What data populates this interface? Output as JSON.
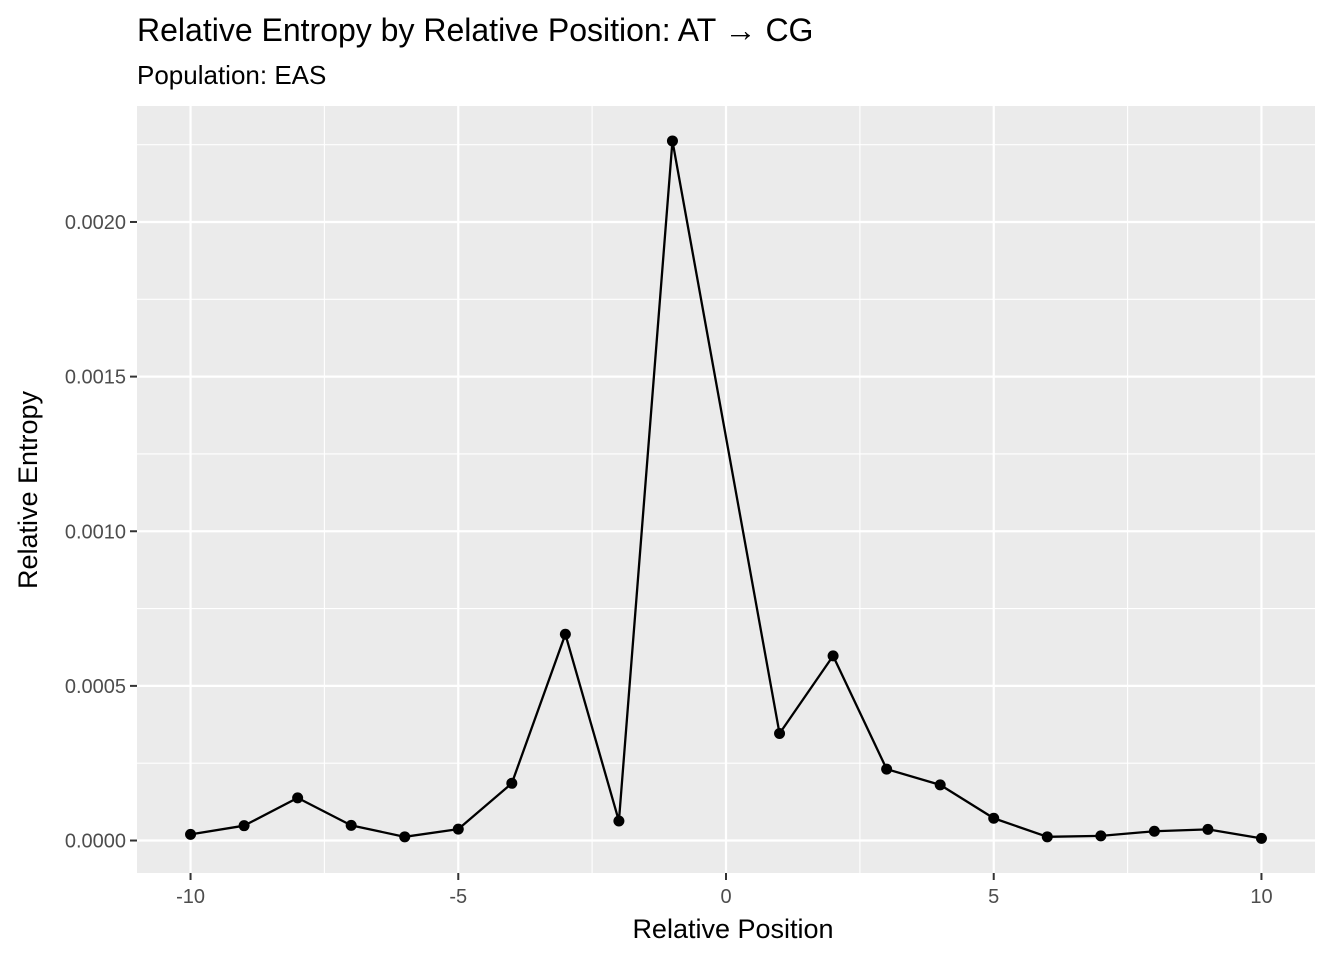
{
  "chart_data": {
    "type": "line",
    "title": "Relative Entropy by Relative Position: AT → CG",
    "subtitle": "Population: EAS",
    "xlabel": "Relative Position",
    "ylabel": "Relative Entropy",
    "x": [
      -10,
      -9,
      -8,
      -7,
      -6,
      -5,
      -4,
      -3,
      -2,
      -1,
      1,
      2,
      3,
      4,
      5,
      6,
      7,
      8,
      9,
      10
    ],
    "series": [
      {
        "values": [
          2e-05,
          4.8e-05,
          0.000138,
          4.9e-05,
          1.2e-05,
          3.7e-05,
          0.000185,
          0.000667,
          6.3e-05,
          0.002262,
          0.000346,
          0.000597,
          0.000231,
          0.00018,
          7.2e-05,
          1.2e-05,
          1.5e-05,
          3e-05,
          3.6e-05,
          7e-06
        ]
      }
    ],
    "xlim": [
      -11,
      11
    ],
    "ylim": [
      -0.000105,
      0.002375
    ],
    "x_ticks": [
      -10,
      -5,
      0,
      5,
      10
    ],
    "x_tick_labels": [
      "-10",
      "-5",
      "0",
      "5",
      "10"
    ],
    "y_ticks": [
      0,
      0.0005,
      0.001,
      0.0015,
      0.002
    ],
    "y_tick_labels": [
      "0.0000",
      "0.0005",
      "0.0010",
      "0.0015",
      "0.0020"
    ],
    "grid": true,
    "colors": {
      "panel": "#ebebeb",
      "grid": "#ffffff",
      "series": "#000000"
    }
  }
}
